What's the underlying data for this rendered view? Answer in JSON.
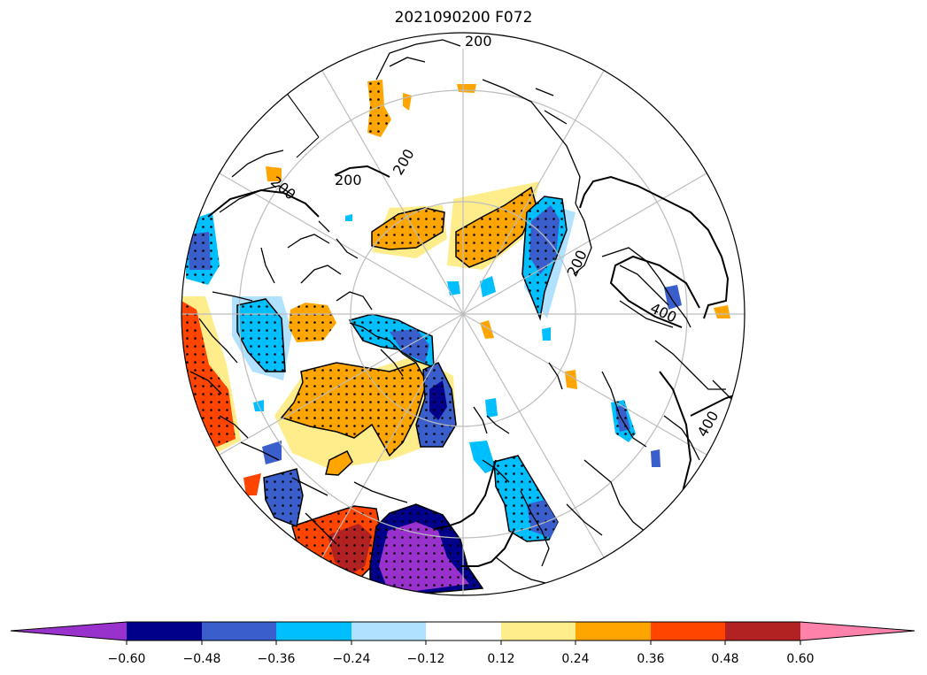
{
  "title": "2021090200 F072",
  "contour_labels": [
    "200",
    "200",
    "200",
    "200",
    "200",
    "400",
    "400"
  ],
  "colorbar": {
    "extend": "both",
    "bin_colors": [
      "#9932cc",
      "#00008b",
      "#3a5fcd",
      "#00bfff",
      "#b0e2ff",
      "#ffffff",
      "#ffec8b",
      "#ffa500",
      "#ff4500",
      "#b22222",
      "#ff82ab"
    ],
    "tick_labels": [
      "−0.60",
      "−0.48",
      "−0.36",
      "−0.24",
      "−0.12",
      "0.12",
      "0.24",
      "0.36",
      "0.48",
      "0.60"
    ],
    "tick_values": [
      -0.6,
      -0.48,
      -0.36,
      -0.24,
      -0.12,
      0.12,
      0.24,
      0.36,
      0.48,
      0.6
    ]
  },
  "map": {
    "projection": "north polar stereographic",
    "graticule": "gray",
    "coastlines": "black",
    "stippling": "dots over significant regions"
  }
}
